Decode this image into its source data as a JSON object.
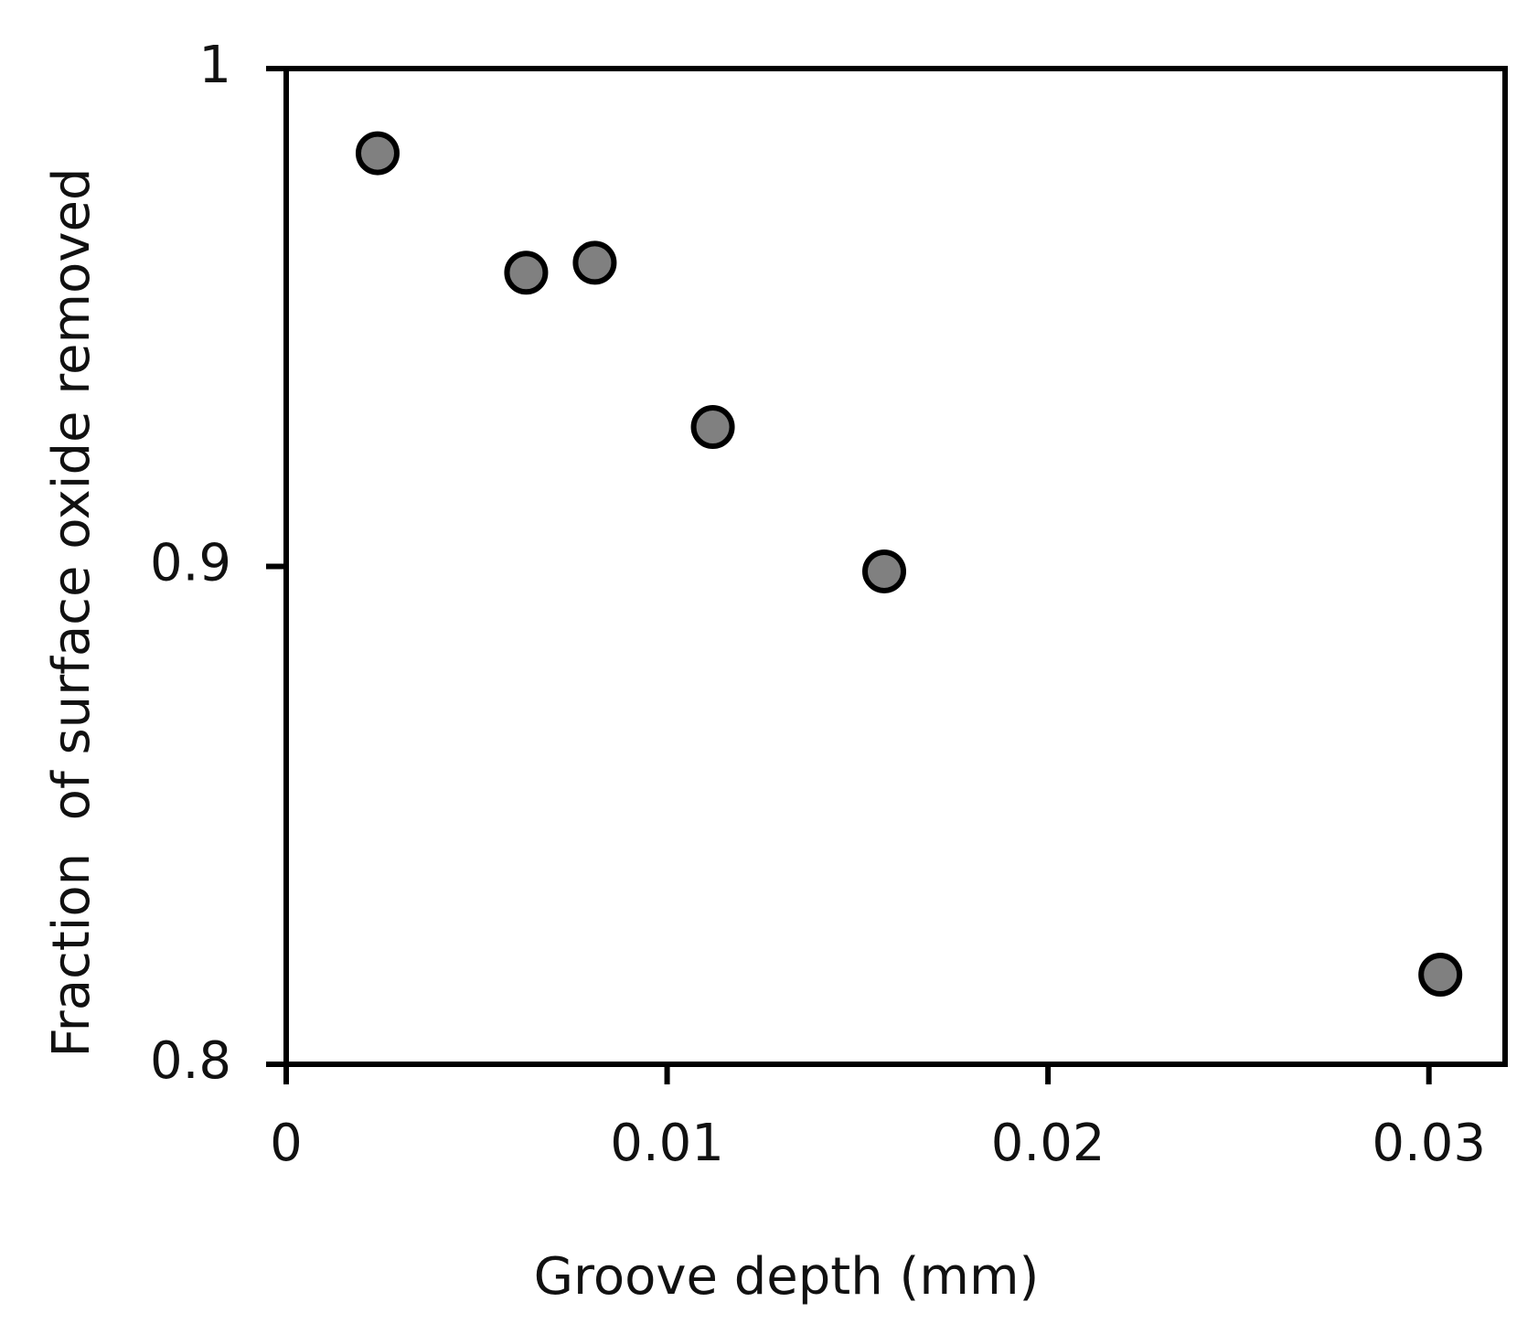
{
  "chart_data": {
    "type": "scatter",
    "x_label": "Groove depth (mm)",
    "y_label": "Fraction  of surface oxide removed",
    "series": [
      {
        "color": "#808080",
        "x": [
          0.0024,
          0.0063,
          0.0081,
          0.0112,
          0.0157,
          0.0303
        ],
        "values": [
          0.983,
          0.959,
          0.961,
          0.928,
          0.899,
          0.818
        ]
      }
    ],
    "xlim": [
      0,
      0.032
    ],
    "xticks": [
      0,
      0.01,
      0.02,
      0.03
    ],
    "ylim": [
      0.8,
      1
    ],
    "yticks": [
      0.8,
      0.9,
      1
    ]
  }
}
